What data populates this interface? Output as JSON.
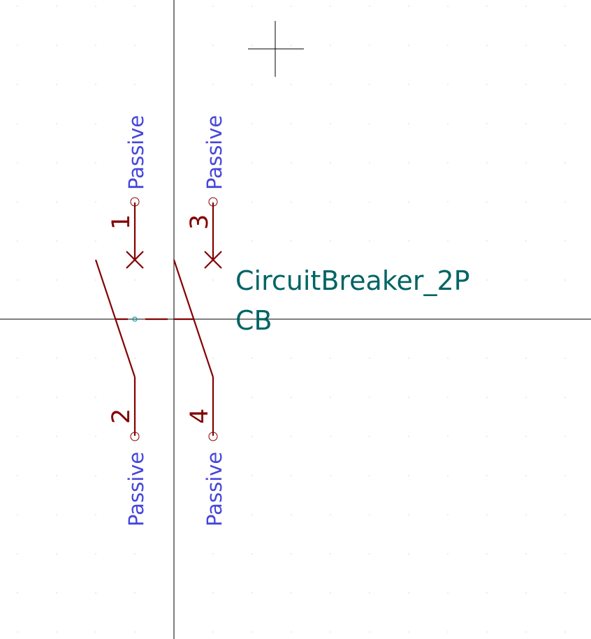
{
  "symbol": {
    "value": "CircuitBreaker_2P",
    "reference": "CB"
  },
  "pins": [
    {
      "number": "1",
      "type": "Passive"
    },
    {
      "number": "3",
      "type": "Passive"
    },
    {
      "number": "2",
      "type": "Passive"
    },
    {
      "number": "4",
      "type": "Passive"
    }
  ],
  "colors": {
    "background": "#ffffff",
    "body": "#840000",
    "pin_type": "#4646dc",
    "field": "#006464",
    "axis": "#000000",
    "grid": "#b4b4b4"
  }
}
